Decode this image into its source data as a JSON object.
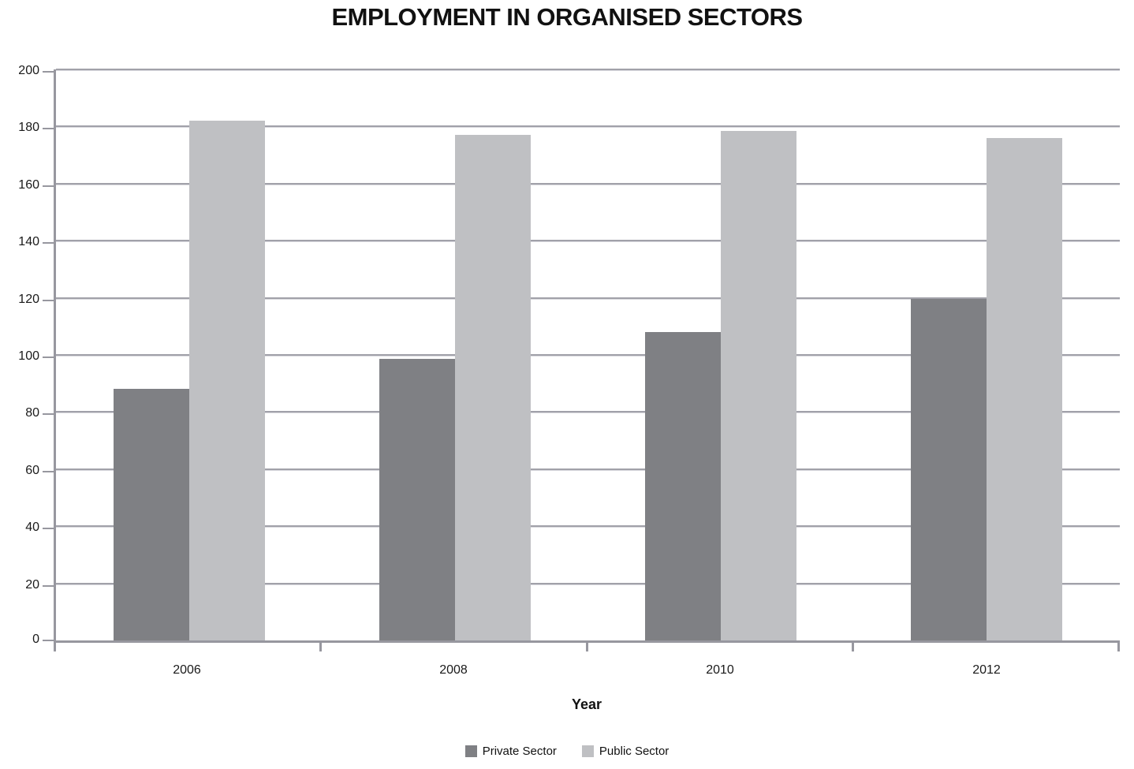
{
  "chart_data": {
    "type": "bar",
    "title": "EMPLOYMENT IN ORGANISED SECTORS",
    "xlabel": "Year",
    "ylabel": "",
    "categories": [
      "2006",
      "2008",
      "2010",
      "2012"
    ],
    "series": [
      {
        "name": "Private Sector",
        "color": "#7f8084",
        "values": [
          88,
          98.5,
          108,
          119.5
        ]
      },
      {
        "name": "Public Sector",
        "color": "#bfc0c3",
        "values": [
          182,
          177,
          178.5,
          176
        ]
      }
    ],
    "ylim": [
      0,
      200
    ],
    "ytick_step": 20,
    "grid": true,
    "legend_position": "bottom"
  },
  "colors": {
    "grid": "#a1a1a9",
    "axis": "#97979f",
    "background": "#ffffff",
    "text": "#111111"
  }
}
